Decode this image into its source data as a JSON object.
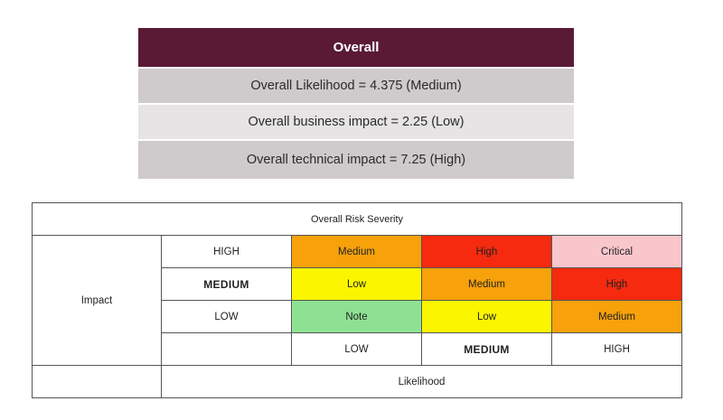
{
  "overall": {
    "header": "Overall",
    "lines": [
      "Overall Likelihood = 4.375 (Medium)",
      "Overall business impact = 2.25 (Low)",
      "Overall technical impact = 7.25 (High)"
    ]
  },
  "matrix": {
    "title": "Overall Risk Severity",
    "impact_label": "Impact",
    "likelihood_label": "Likelihood",
    "impact_levels": [
      "HIGH",
      "MEDIUM",
      "LOW"
    ],
    "likelihood_levels": [
      "LOW",
      "MEDIUM",
      "HIGH"
    ],
    "rows": [
      [
        "Medium",
        "High",
        "Critical"
      ],
      [
        "Low",
        "Medium",
        "High"
      ],
      [
        "Note",
        "Low",
        "Medium"
      ]
    ]
  },
  "colors": {
    "header_bg": "#5a1a36",
    "note": "#8ee193",
    "low": "#fbf600",
    "medium": "#f7a10b",
    "high": "#f52a0e",
    "critical": "#f9c6cc"
  }
}
